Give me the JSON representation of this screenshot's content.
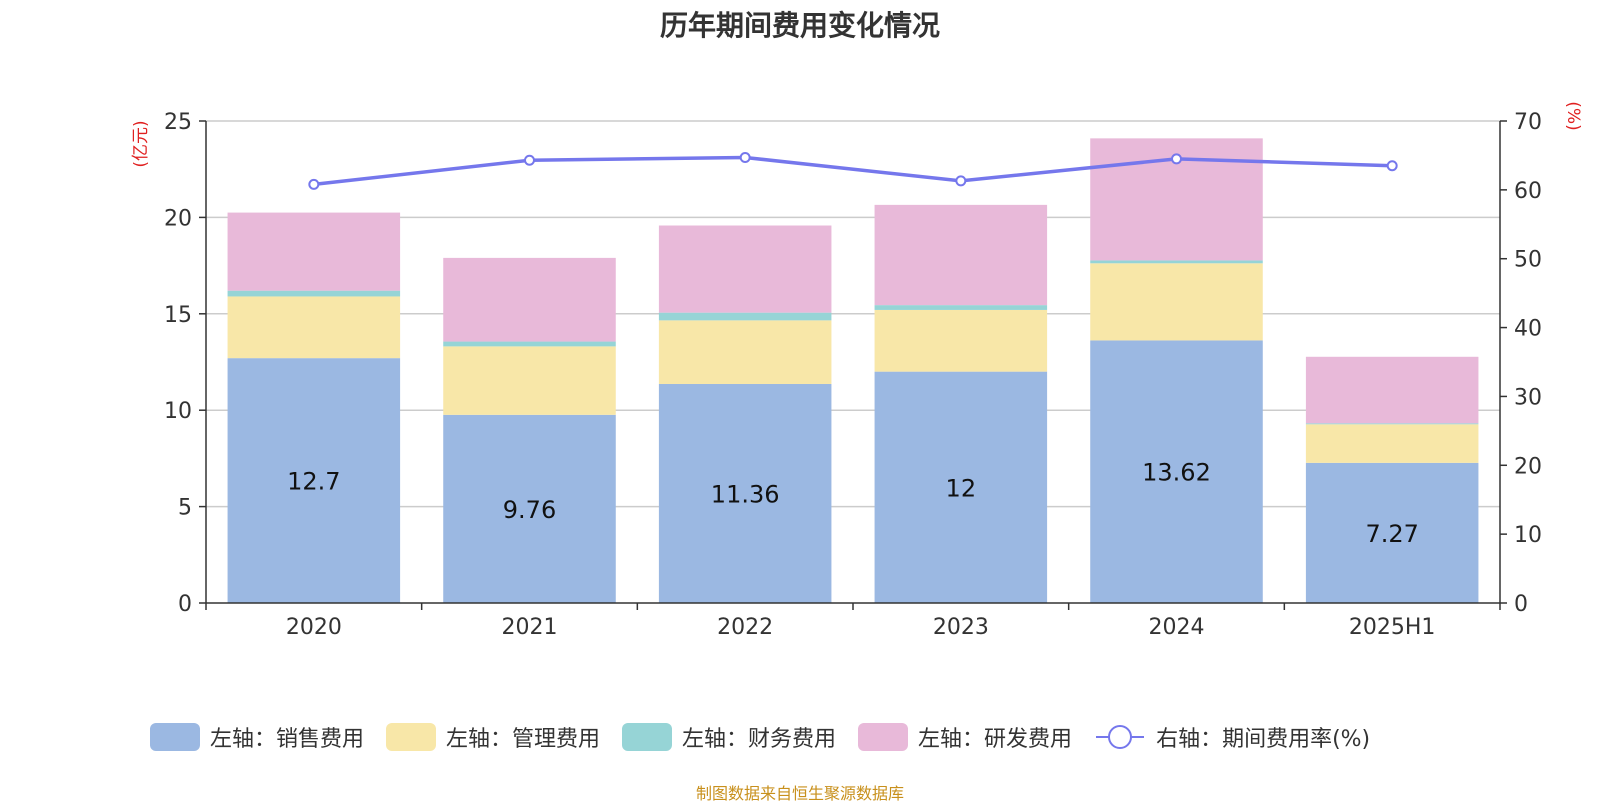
{
  "chart_data": {
    "type": "bar",
    "title": "历年期间费用变化情况",
    "categories": [
      "2020",
      "2021",
      "2022",
      "2023",
      "2024",
      "2025H1"
    ],
    "series": [
      {
        "name": "左轴：销售费用",
        "axis": "left",
        "kind": "bar",
        "color": "#9bb8e2",
        "values": [
          12.7,
          9.76,
          11.36,
          12,
          13.62,
          7.27
        ],
        "show_labels": true
      },
      {
        "name": "左轴：管理费用",
        "axis": "left",
        "kind": "bar",
        "color": "#f8e7a8",
        "values": [
          3.2,
          3.55,
          3.3,
          3.2,
          4.0,
          2.0
        ]
      },
      {
        "name": "左轴：财务费用",
        "axis": "left",
        "kind": "bar",
        "color": "#96d4d6",
        "values": [
          0.3,
          0.25,
          0.4,
          0.25,
          0.15,
          0.05
        ]
      },
      {
        "name": "左轴：研发费用",
        "axis": "left",
        "kind": "bar",
        "color": "#e8b9d9",
        "values": [
          4.05,
          4.34,
          4.52,
          5.2,
          6.33,
          3.45
        ]
      },
      {
        "name": "右轴：期间费用率(%)",
        "axis": "right",
        "kind": "line",
        "color": "#7577ec",
        "values": [
          60.8,
          64.3,
          64.7,
          61.3,
          64.5,
          63.5
        ]
      }
    ],
    "left_axis": {
      "unit": "(亿元)",
      "ylim": [
        0,
        25
      ],
      "ticks": [
        0,
        5,
        10,
        15,
        20,
        25
      ]
    },
    "right_axis": {
      "unit": "(%)",
      "ylim": [
        0,
        70
      ],
      "ticks": [
        0,
        10,
        20,
        30,
        40,
        50,
        60,
        70
      ]
    },
    "grid": true,
    "legend_position": "bottom",
    "source_note": "制图数据来自恒生聚源数据库"
  }
}
